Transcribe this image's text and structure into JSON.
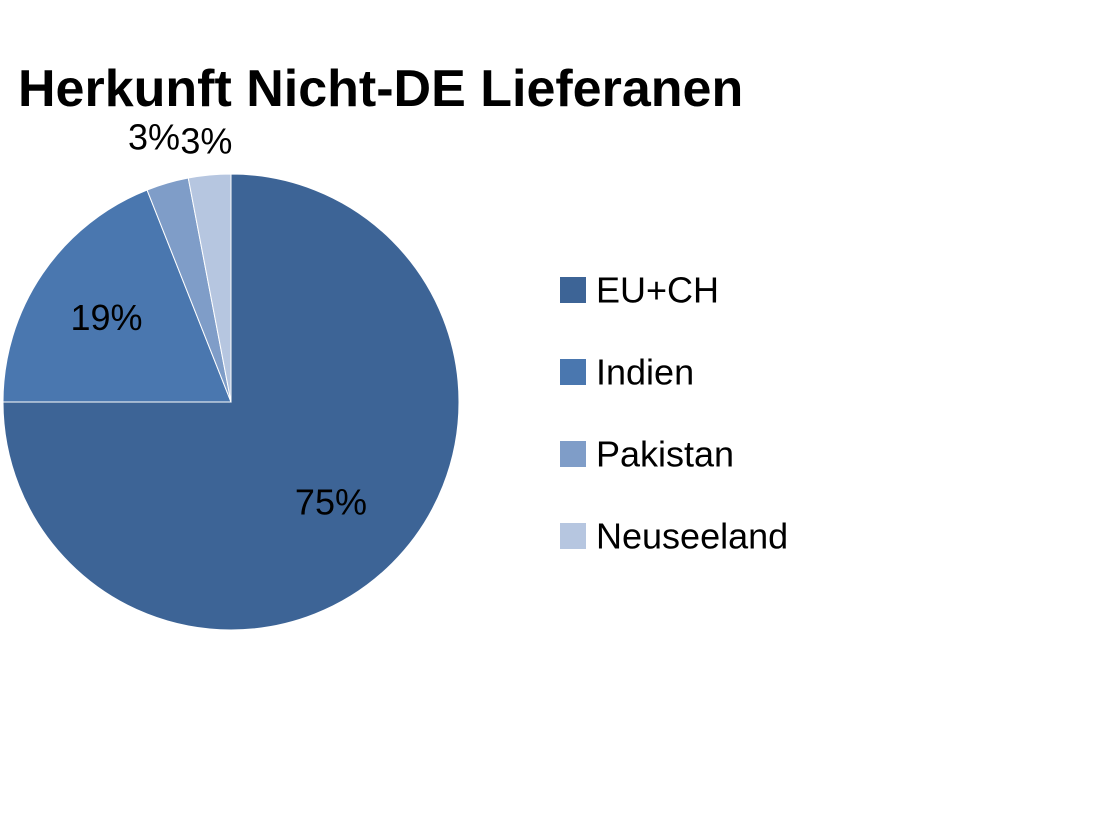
{
  "chart_data": {
    "type": "pie",
    "title": "Herkunft Nicht-DE Lieferanen",
    "categories": [
      "EU+CH",
      "Indien",
      "Pakistan",
      "Neuseeland"
    ],
    "values": [
      75,
      19,
      3,
      3
    ],
    "data_labels": [
      "75%",
      "19%",
      "3%",
      "3%"
    ],
    "colors": [
      "#3D6496",
      "#4A77AF",
      "#7F9DC8",
      "#B6C6E0"
    ],
    "legend_position": "right",
    "start_angle_deg": 0,
    "direction": "clockwise"
  }
}
